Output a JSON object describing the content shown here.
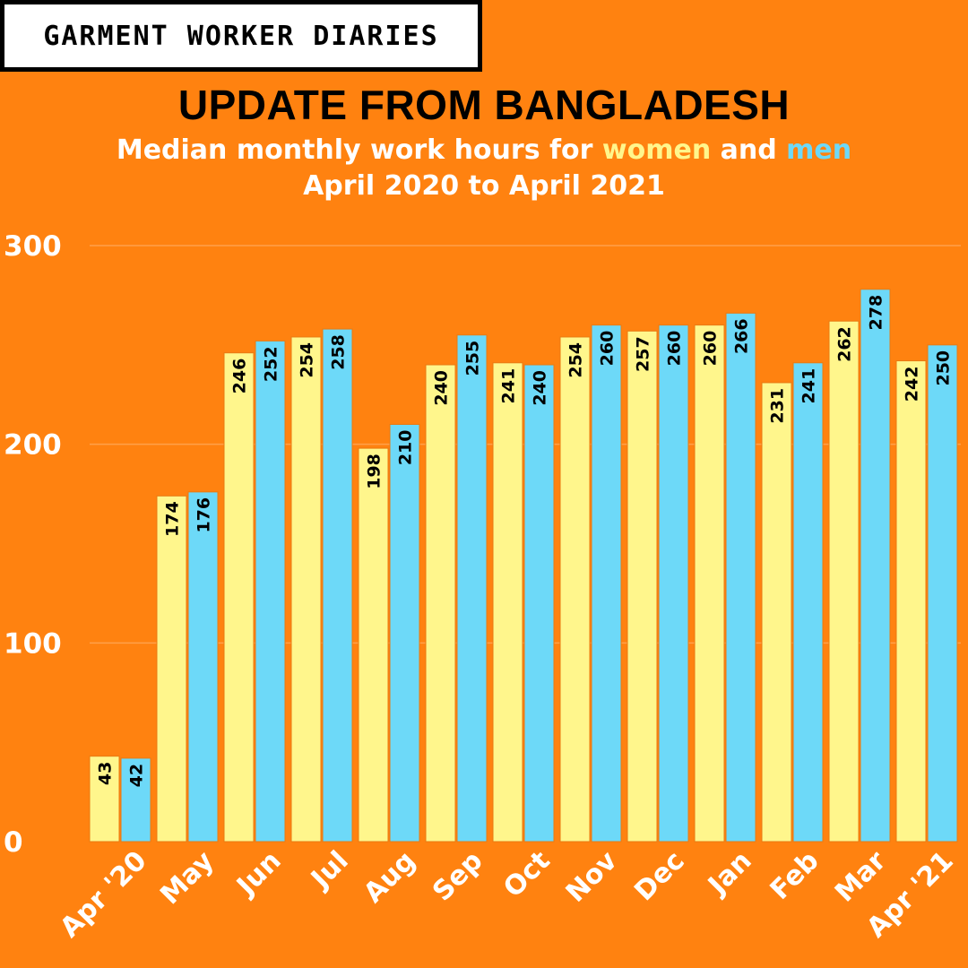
{
  "brand": "GARMENT WORKER DIARIES",
  "title": "UPDATE FROM BANGLADESH",
  "subtitle": {
    "prefix": "Median monthly work hours for ",
    "women": "women",
    "middle": " and ",
    "men": "men",
    "line2": "April 2020 to April 2021"
  },
  "colors": {
    "background": "#FF8210",
    "women": "#FFF68C",
    "men": "#6DD9F8",
    "text": "#FFFFFF",
    "grid": "#FFA04A"
  },
  "chart_data": {
    "type": "bar",
    "categories": [
      "Apr '20",
      "May",
      "Jun",
      "Jul",
      "Aug",
      "Sep",
      "Oct",
      "Nov",
      "Dec",
      "Jan",
      "Feb",
      "Mar",
      "Apr '21"
    ],
    "series": [
      {
        "name": "women",
        "values": [
          43,
          174,
          246,
          254,
          198,
          240,
          241,
          254,
          257,
          260,
          231,
          262,
          242
        ]
      },
      {
        "name": "men",
        "values": [
          42,
          176,
          252,
          258,
          210,
          255,
          240,
          260,
          260,
          266,
          241,
          278,
          250
        ]
      }
    ],
    "yticks": [
      0,
      100,
      200,
      300
    ],
    "ylim": [
      0,
      300
    ],
    "grid": true,
    "data_labels": true
  }
}
